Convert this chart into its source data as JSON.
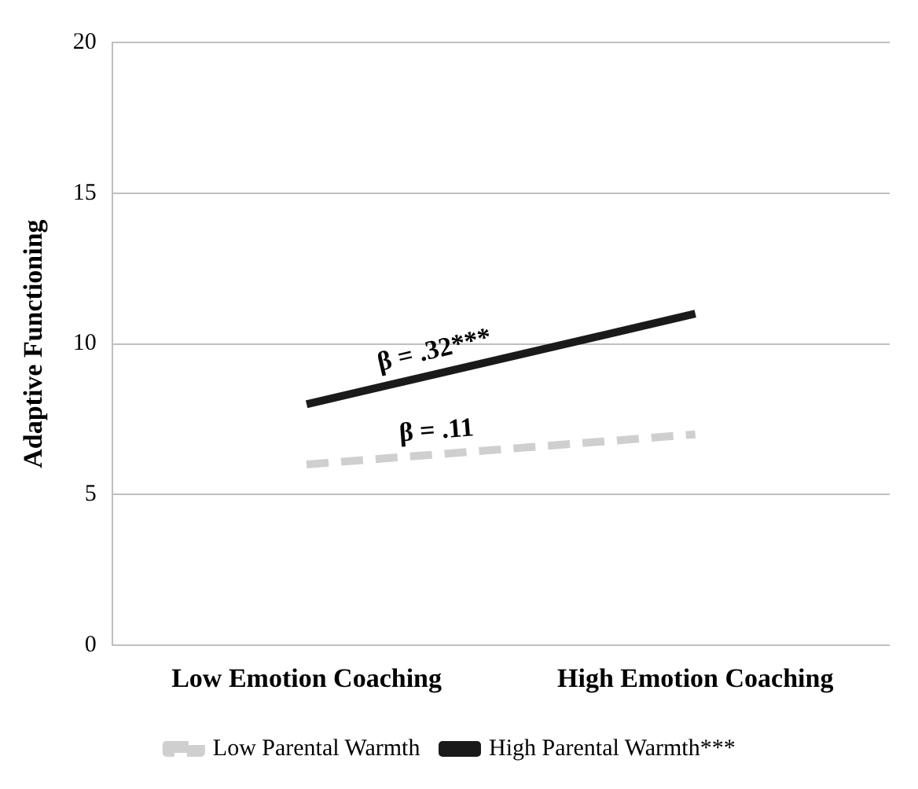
{
  "chart_data": {
    "type": "line",
    "ylabel": "Adaptive Functioning",
    "categories": [
      "Low Emotion Coaching",
      "High Emotion Coaching"
    ],
    "series": [
      {
        "name": "Low Parental Warmth",
        "color": "#cfcfcf",
        "values": [
          6,
          7
        ],
        "line_style": "dashed"
      },
      {
        "name": "High Parental Warmth***",
        "color": "#1a1a1a",
        "values": [
          8,
          11
        ],
        "line_style": "solid"
      }
    ],
    "ylim": [
      0,
      20
    ],
    "yticks": [
      0,
      5,
      10,
      15,
      20
    ],
    "grid": "y",
    "legend": "bottom",
    "marker": "none",
    "annotations": [
      "β = .11",
      "β = .32***"
    ]
  }
}
